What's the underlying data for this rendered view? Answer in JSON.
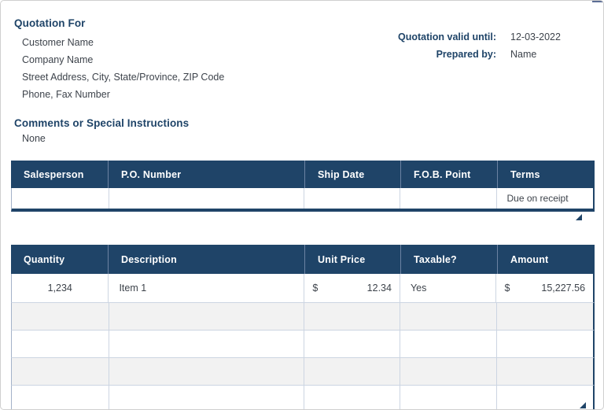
{
  "colors": {
    "accent_navy": "#1f4468",
    "alt_row_gray": "#f2f2f2",
    "body_text": "#3d434b",
    "header_text": "#ffffff"
  },
  "quotation_for": {
    "title": "Quotation For",
    "lines": [
      "Customer Name",
      "Company Name",
      "Street Address, City, State/Province, ZIP Code",
      "Phone, Fax Number"
    ]
  },
  "quote_meta": {
    "valid_until": {
      "label": "Quotation valid until:",
      "value": "12-03-2022"
    },
    "prepared_by": {
      "label": "Prepared by:",
      "value": "Name"
    }
  },
  "comments": {
    "title": "Comments or Special Instructions",
    "value": "None"
  },
  "terms_table": {
    "headers": {
      "salesperson": "Salesperson",
      "po_number": "P.O. Number",
      "ship_date": "Ship Date",
      "fob_point": "F.O.B. Point",
      "terms": "Terms"
    },
    "row": {
      "salesperson": "",
      "po_number": "",
      "ship_date": "",
      "fob_point": "",
      "terms": "Due on receipt"
    }
  },
  "items_table": {
    "headers": {
      "quantity": "Quantity",
      "description": "Description",
      "unit_price": "Unit Price",
      "taxable": "Taxable?",
      "amount": "Amount"
    },
    "rows": [
      {
        "quantity": "1,234",
        "description": "Item 1",
        "currency": "$",
        "unit_price": "12.34",
        "taxable": "Yes",
        "amount": "15,227.56"
      }
    ],
    "empty_row_count": 4
  }
}
